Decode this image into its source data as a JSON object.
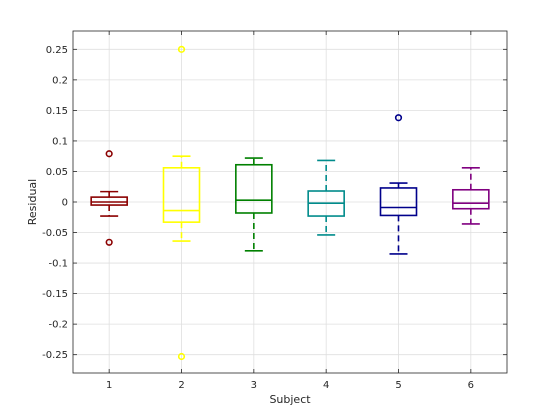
{
  "chart_data": {
    "type": "box",
    "title": "",
    "xlabel": "Subject",
    "ylabel": "Residual",
    "ylim": [
      -0.28,
      0.28
    ],
    "xlim": [
      0.5,
      6.5
    ],
    "grid": true,
    "categories": [
      "1",
      "2",
      "3",
      "4",
      "5",
      "6"
    ],
    "yticks": [
      0.25,
      0.2,
      0.15,
      0.1,
      0.05,
      0,
      -0.05,
      -0.1,
      -0.15,
      -0.2,
      -0.25
    ],
    "ytick_labels": [
      "0.25",
      "0.2",
      "0.15",
      "0.1",
      "0.05",
      "0",
      "-0.05",
      "-0.1",
      "-0.15",
      "-0.2",
      "-0.25"
    ],
    "boxes": [
      {
        "category": "1",
        "color": "#8b0000",
        "whisker_low": -0.023,
        "q1": -0.005,
        "median": 0.0,
        "q3": 0.008,
        "whisker_high": 0.017,
        "outliers": [
          0.079,
          -0.066
        ]
      },
      {
        "category": "2",
        "color": "#ffff00",
        "whisker_low": -0.064,
        "q1": -0.033,
        "median": -0.014,
        "q3": 0.056,
        "whisker_high": 0.075,
        "outliers": [
          0.25,
          -0.253
        ]
      },
      {
        "category": "3",
        "color": "#008000",
        "whisker_low": -0.08,
        "q1": -0.018,
        "median": 0.003,
        "q3": 0.061,
        "whisker_high": 0.072,
        "outliers": []
      },
      {
        "category": "4",
        "color": "#008b8b",
        "whisker_low": -0.054,
        "q1": -0.023,
        "median": -0.002,
        "q3": 0.018,
        "whisker_high": 0.068,
        "outliers": []
      },
      {
        "category": "5",
        "color": "#00008b",
        "whisker_low": -0.085,
        "q1": -0.022,
        "median": -0.009,
        "q3": 0.023,
        "whisker_high": 0.031,
        "outliers": [
          0.138
        ]
      },
      {
        "category": "6",
        "color": "#800080",
        "whisker_low": -0.036,
        "q1": -0.011,
        "median": -0.002,
        "q3": 0.02,
        "whisker_high": 0.056,
        "outliers": []
      }
    ]
  }
}
